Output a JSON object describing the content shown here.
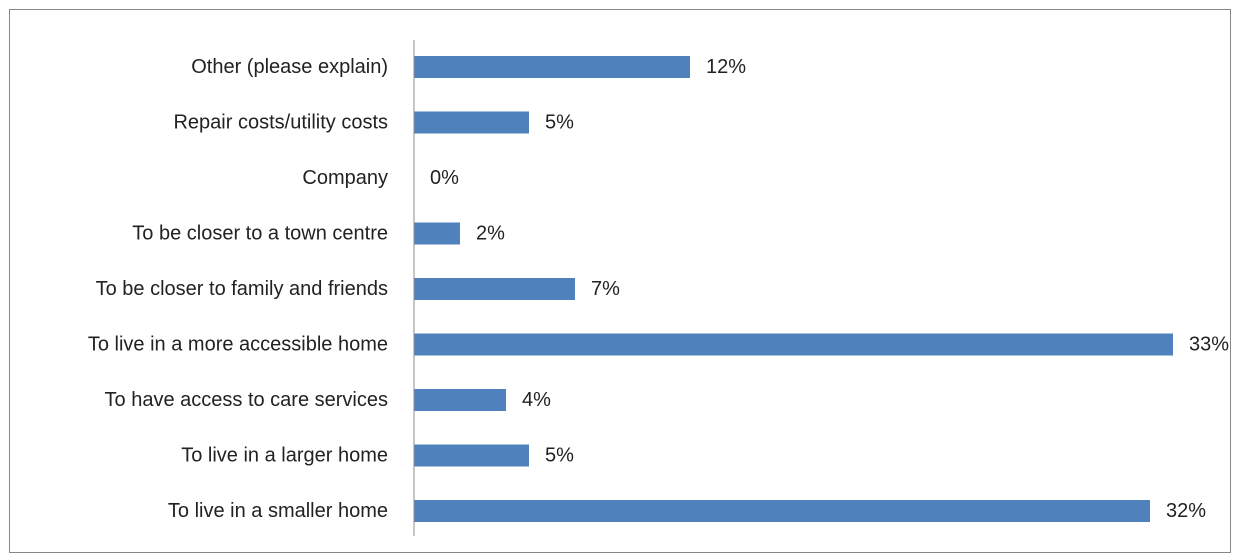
{
  "colors": {
    "bar": "#4f81bd",
    "axis": "#8c8c8c",
    "text": "#222222"
  },
  "chart_data": {
    "type": "bar",
    "orientation": "horizontal",
    "categories": [
      "Other (please explain)",
      "Repair costs/utility costs",
      "Company",
      "To be closer to a town centre",
      "To be closer to family and friends",
      "To live in a more accessible home",
      "To have access to care services",
      "To live in a larger home",
      "To live in a smaller home"
    ],
    "values": [
      12,
      5,
      0,
      2,
      7,
      33,
      4,
      5,
      32
    ],
    "data_labels": [
      "12%",
      "5%",
      "0%",
      "2%",
      "7%",
      "33%",
      "4%",
      "5%",
      "32%"
    ],
    "unit": "%",
    "xlim": [
      0,
      33
    ],
    "grid": false,
    "legend": "none",
    "title": "",
    "xlabel": "",
    "ylabel": ""
  }
}
